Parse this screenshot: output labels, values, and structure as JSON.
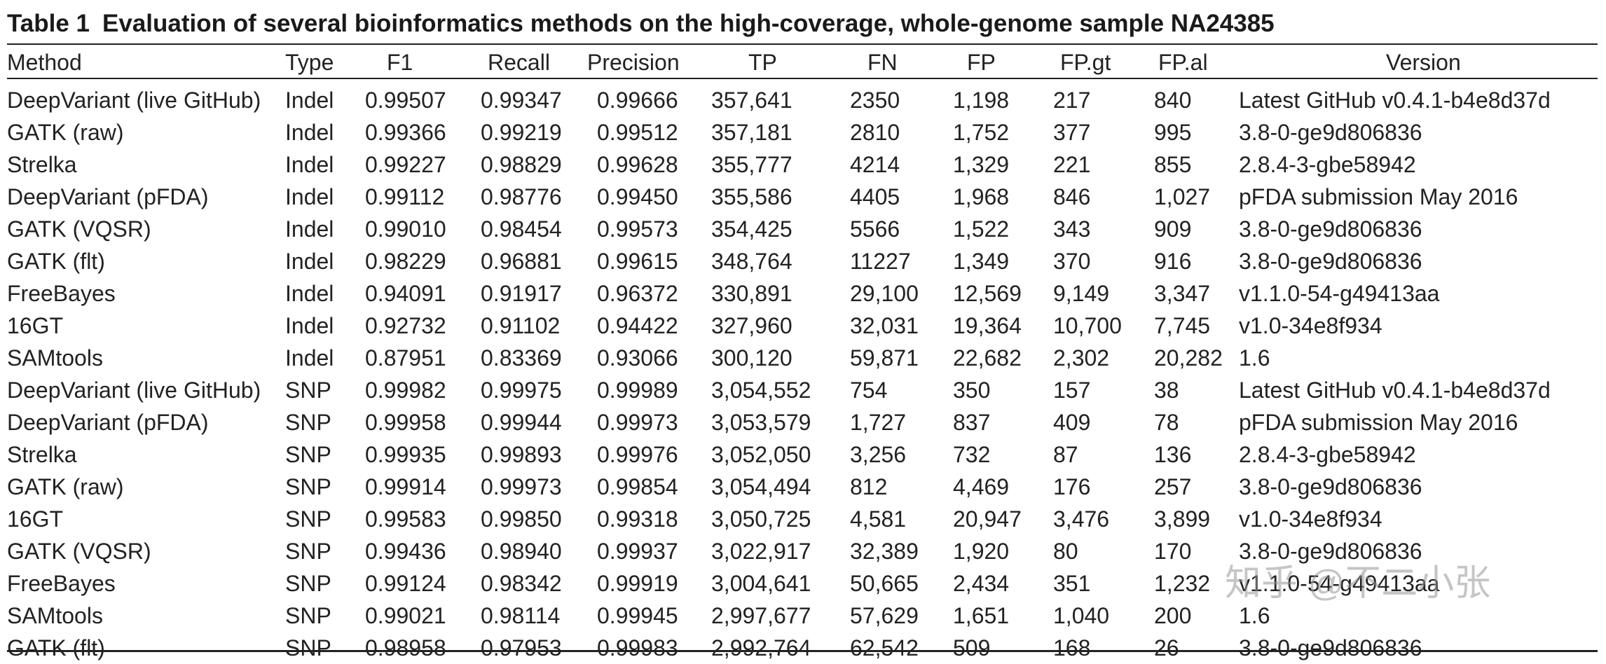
{
  "title": {
    "number": "Table 1",
    "text": "Evaluation of several bioinformatics methods on the high-coverage, whole-genome sample NA24385"
  },
  "columns": {
    "method": "Method",
    "type": "Type",
    "f1": "F1",
    "recall": "Recall",
    "precision": "Precision",
    "tp": "TP",
    "fn": "FN",
    "fp": "FP",
    "fpgt": "FP.gt",
    "fpal": "FP.al",
    "version": "Version"
  },
  "rows": [
    {
      "method": "DeepVariant (live GitHub)",
      "type": "Indel",
      "f1": "0.99507",
      "recall": "0.99347",
      "precision": "0.99666",
      "tp": "357,641",
      "fn": "2350",
      "fp": "1,198",
      "fpgt": "217",
      "fpal": "840",
      "version": "Latest GitHub v0.4.1-b4e8d37d"
    },
    {
      "method": "GATK (raw)",
      "type": "Indel",
      "f1": "0.99366",
      "recall": "0.99219",
      "precision": "0.99512",
      "tp": "357,181",
      "fn": "2810",
      "fp": "1,752",
      "fpgt": "377",
      "fpal": "995",
      "version": "3.8-0-ge9d806836"
    },
    {
      "method": "Strelka",
      "type": "Indel",
      "f1": "0.99227",
      "recall": "0.98829",
      "precision": "0.99628",
      "tp": "355,777",
      "fn": "4214",
      "fp": "1,329",
      "fpgt": "221",
      "fpal": "855",
      "version": "2.8.4-3-gbe58942"
    },
    {
      "method": "DeepVariant (pFDA)",
      "type": "Indel",
      "f1": "0.99112",
      "recall": "0.98776",
      "precision": "0.99450",
      "tp": "355,586",
      "fn": "4405",
      "fp": "1,968",
      "fpgt": "846",
      "fpal": "1,027",
      "version": "pFDA submission May 2016"
    },
    {
      "method": "GATK (VQSR)",
      "type": "Indel",
      "f1": "0.99010",
      "recall": "0.98454",
      "precision": "0.99573",
      "tp": "354,425",
      "fn": "5566",
      "fp": "1,522",
      "fpgt": "343",
      "fpal": "909",
      "version": "3.8-0-ge9d806836"
    },
    {
      "method": "GATK (flt)",
      "type": "Indel",
      "f1": "0.98229",
      "recall": "0.96881",
      "precision": "0.99615",
      "tp": "348,764",
      "fn": "11227",
      "fp": "1,349",
      "fpgt": "370",
      "fpal": "916",
      "version": "3.8-0-ge9d806836"
    },
    {
      "method": "FreeBayes",
      "type": "Indel",
      "f1": "0.94091",
      "recall": "0.91917",
      "precision": "0.96372",
      "tp": "330,891",
      "fn": "29,100",
      "fp": "12,569",
      "fpgt": "9,149",
      "fpal": "3,347",
      "version": "v1.1.0-54-g49413aa"
    },
    {
      "method": "16GT",
      "type": "Indel",
      "f1": "0.92732",
      "recall": "0.91102",
      "precision": "0.94422",
      "tp": "327,960",
      "fn": "32,031",
      "fp": "19,364",
      "fpgt": "10,700",
      "fpal": "7,745",
      "version": "v1.0-34e8f934"
    },
    {
      "method": "SAMtools",
      "type": "Indel",
      "f1": "0.87951",
      "recall": "0.83369",
      "precision": "0.93066",
      "tp": "300,120",
      "fn": "59,871",
      "fp": "22,682",
      "fpgt": "2,302",
      "fpal": "20,282",
      "version": "1.6"
    },
    {
      "method": "DeepVariant (live GitHub)",
      "type": "SNP",
      "f1": "0.99982",
      "recall": "0.99975",
      "precision": "0.99989",
      "tp": "3,054,552",
      "fn": "754",
      "fp": "350",
      "fpgt": "157",
      "fpal": "38",
      "version": "Latest GitHub v0.4.1-b4e8d37d"
    },
    {
      "method": "DeepVariant (pFDA)",
      "type": "SNP",
      "f1": "0.99958",
      "recall": "0.99944",
      "precision": "0.99973",
      "tp": "3,053,579",
      "fn": "1,727",
      "fp": "837",
      "fpgt": "409",
      "fpal": "78",
      "version": "pFDA submission May 2016"
    },
    {
      "method": "Strelka",
      "type": "SNP",
      "f1": "0.99935",
      "recall": "0.99893",
      "precision": "0.99976",
      "tp": "3,052,050",
      "fn": "3,256",
      "fp": "732",
      "fpgt": "87",
      "fpal": "136",
      "version": "2.8.4-3-gbe58942"
    },
    {
      "method": "GATK (raw)",
      "type": "SNP",
      "f1": "0.99914",
      "recall": "0.99973",
      "precision": "0.99854",
      "tp": "3,054,494",
      "fn": "812",
      "fp": "4,469",
      "fpgt": "176",
      "fpal": "257",
      "version": "3.8-0-ge9d806836"
    },
    {
      "method": "16GT",
      "type": "SNP",
      "f1": "0.99583",
      "recall": "0.99850",
      "precision": "0.99318",
      "tp": "3,050,725",
      "fn": "4,581",
      "fp": "20,947",
      "fpgt": "3,476",
      "fpal": "3,899",
      "version": "v1.0-34e8f934"
    },
    {
      "method": "GATK (VQSR)",
      "type": "SNP",
      "f1": "0.99436",
      "recall": "0.98940",
      "precision": "0.99937",
      "tp": "3,022,917",
      "fn": "32,389",
      "fp": "1,920",
      "fpgt": "80",
      "fpal": "170",
      "version": "3.8-0-ge9d806836"
    },
    {
      "method": "FreeBayes",
      "type": "SNP",
      "f1": "0.99124",
      "recall": "0.98342",
      "precision": "0.99919",
      "tp": "3,004,641",
      "fn": "50,665",
      "fp": "2,434",
      "fpgt": "351",
      "fpal": "1,232",
      "version": "v1.1.0-54-g49413aa"
    },
    {
      "method": "SAMtools",
      "type": "SNP",
      "f1": "0.99021",
      "recall": "0.98114",
      "precision": "0.99945",
      "tp": "2,997,677",
      "fn": "57,629",
      "fp": "1,651",
      "fpgt": "1,040",
      "fpal": "200",
      "version": "1.6"
    },
    {
      "method": "GATK (flt)",
      "type": "SNP",
      "f1": "0.98958",
      "recall": "0.97953",
      "precision": "0.99983",
      "tp": "2,992,764",
      "fn": "62,542",
      "fp": "509",
      "fpgt": "168",
      "fpal": "26",
      "version": "3.8-0-ge9d806836"
    }
  ],
  "watermark": "知乎 @不二小张"
}
